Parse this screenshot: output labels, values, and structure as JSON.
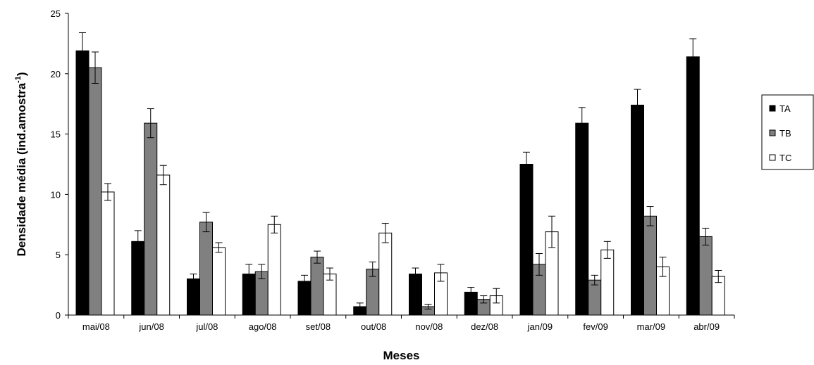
{
  "chart_data": {
    "type": "bar",
    "title": "",
    "xlabel": "Meses",
    "ylabel": "Densidade média (ind.amostra",
    "ylabel_sup": "-1",
    "ylabel_close": ")",
    "ylim": [
      0,
      25
    ],
    "yticks": [
      "0",
      "5",
      "10",
      "15",
      "20",
      "25"
    ],
    "grid": false,
    "legend_position": "right",
    "categories": [
      "mai/08",
      "jun/08",
      "jul/08",
      "ago/08",
      "set/08",
      "out/08",
      "nov/08",
      "dez/08",
      "jan/09",
      "fev/09",
      "mar/09",
      "abr/09"
    ],
    "series": [
      {
        "name": "TA",
        "color": "#000000",
        "values": [
          21.9,
          6.1,
          3.0,
          3.4,
          2.8,
          0.7,
          3.4,
          1.9,
          12.5,
          15.9,
          17.4,
          21.4
        ],
        "errors": [
          1.5,
          0.9,
          0.4,
          0.8,
          0.5,
          0.3,
          0.5,
          0.4,
          1.0,
          1.3,
          1.3,
          1.5
        ]
      },
      {
        "name": "TB",
        "color": "#808080",
        "values": [
          20.5,
          15.9,
          7.7,
          3.6,
          4.8,
          3.8,
          0.7,
          1.3,
          4.2,
          2.9,
          8.2,
          6.5
        ],
        "errors": [
          1.3,
          1.2,
          0.8,
          0.6,
          0.5,
          0.6,
          0.2,
          0.3,
          0.9,
          0.4,
          0.8,
          0.7
        ]
      },
      {
        "name": "TC",
        "color": "#ffffff",
        "values": [
          10.2,
          11.6,
          5.6,
          7.5,
          3.4,
          6.8,
          3.5,
          1.6,
          6.9,
          5.4,
          4.0,
          3.2
        ],
        "errors": [
          0.7,
          0.8,
          0.4,
          0.7,
          0.5,
          0.8,
          0.7,
          0.6,
          1.3,
          0.7,
          0.8,
          0.5
        ]
      }
    ]
  }
}
